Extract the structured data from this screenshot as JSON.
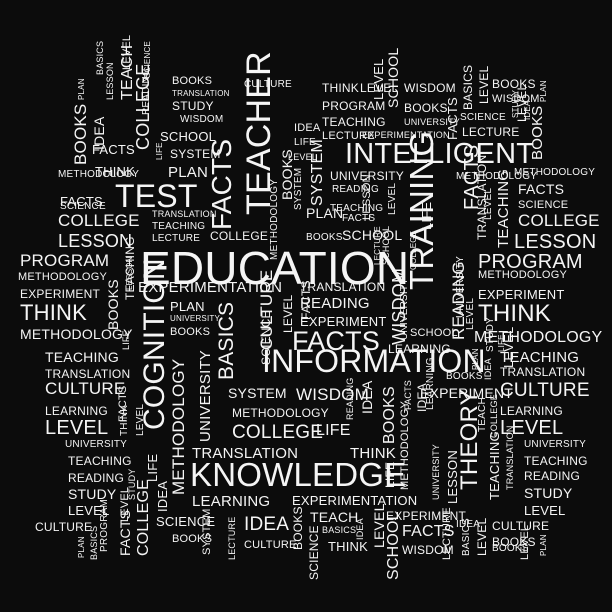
{
  "scene": {
    "background_color": "#0c0c0c",
    "text_color": "#f5f5f5",
    "words": [
      "EDUCATION",
      "KNOWLEDGE",
      "INFORMATION",
      "INTELLIGENT",
      "TEACHER",
      "TEST",
      "FACTS",
      "TRAINING",
      "COGNITION",
      "THEORY",
      "PROGRAM",
      "LESSON",
      "COLLEGE",
      "THINK",
      "CULTURE",
      "METHODOLOGY",
      "EXPERIMENT",
      "EXPERIMENTATION",
      "LEARNING",
      "TEACHING",
      "WISDOM",
      "READING",
      "SCHOOL",
      "LEVEL",
      "STUDY",
      "BOOKS",
      "IDEA",
      "PLAN",
      "SYSTEM",
      "BASICS",
      "SCIENCE",
      "LECTURE",
      "UNIVERSITY",
      "TRANSLATION",
      "LIFE",
      "TEACH"
    ]
  }
}
